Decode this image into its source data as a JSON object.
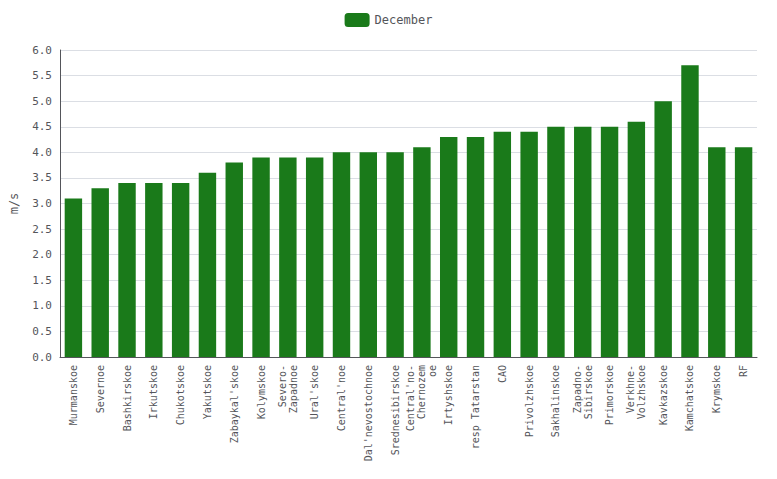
{
  "chart_data": {
    "type": "bar",
    "ylabel": "m/s",
    "categories": [
      "Murmanskoe",
      "Severnoe",
      "Bashkirskoe",
      "Irkutskoe",
      "Chukotskoe",
      "Yakutskoe",
      "Zabaykal'skoe",
      "Kolymskoe",
      "Severo-\nZapadnoe",
      "Ural'skoe",
      "Central'noe",
      "Dal'nevostochnoe",
      "Srednesibirskoe",
      "Central'no-\nChernozem\noe",
      "Irtyshskoe",
      "resp Tatarstan",
      "CAO",
      "Privolzhskoe",
      "Sakhalinskoe",
      "Zapadno-\nSibirskoe",
      "Primorskoe",
      "Verkhne-\nVolzhskoe",
      "Kavkazskoe",
      "Kamchatskoe",
      "Krymskoe",
      "RF"
    ],
    "series": [
      {
        "name": "December",
        "color": "#1a7a1a",
        "values": [
          3.1,
          3.3,
          3.4,
          3.4,
          3.4,
          3.6,
          3.8,
          3.9,
          3.9,
          3.9,
          4.0,
          4.0,
          4.0,
          4.1,
          4.3,
          4.3,
          4.4,
          4.4,
          4.5,
          4.5,
          4.5,
          4.6,
          5.0,
          5.7,
          4.1,
          4.1
        ]
      }
    ],
    "ylim": [
      0,
      6
    ],
    "yticks": [
      {
        "value": 0,
        "label": "0.0"
      },
      {
        "value": 0.5,
        "label": "0.5"
      },
      {
        "value": 1.0,
        "label": "1.0"
      },
      {
        "value": 1.5,
        "label": "1.5"
      },
      {
        "value": 2.0,
        "label": "2.0"
      },
      {
        "value": 2.5,
        "label": "2.5"
      },
      {
        "value": 3.0,
        "label": "3.0"
      },
      {
        "value": 3.5,
        "label": "3.5"
      },
      {
        "value": 4.0,
        "label": "4.0"
      },
      {
        "value": 4.5,
        "label": "4.5"
      },
      {
        "value": 5.0,
        "label": "5.0"
      },
      {
        "value": 5.5,
        "label": "5.5"
      },
      {
        "value": 6.0,
        "label": "6.0"
      }
    ],
    "grid": true,
    "legend": "top"
  }
}
